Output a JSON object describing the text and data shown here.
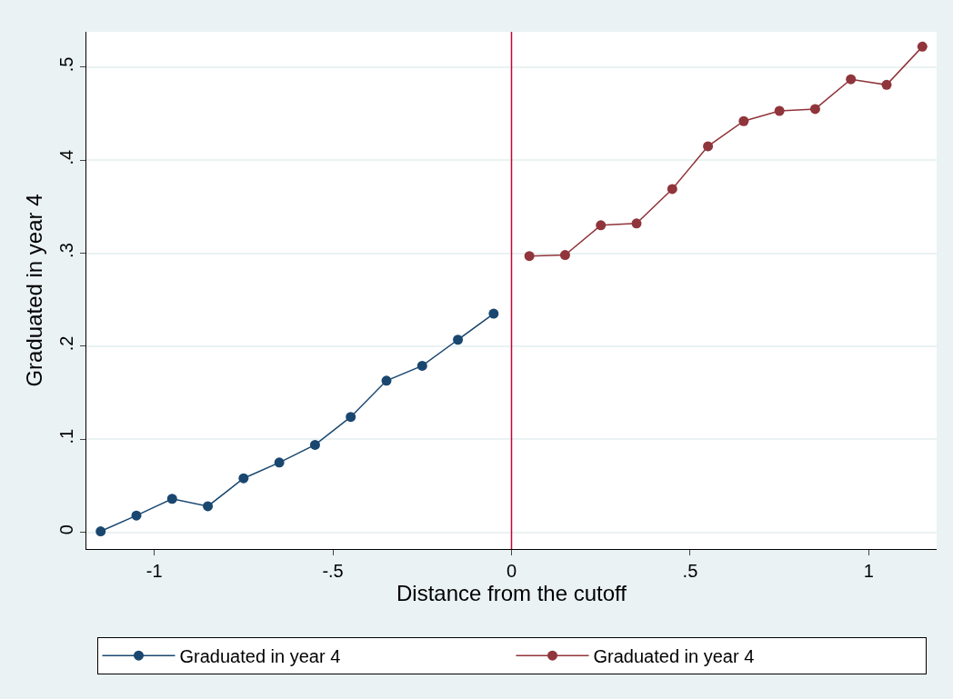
{
  "chart_data": {
    "type": "line",
    "xlabel": "Distance from the cutoff",
    "ylabel": "Graduated in year 4",
    "series": [
      {
        "name": "Graduated in year 4",
        "color": "#1a476f",
        "x": [
          -1.15,
          -1.05,
          -0.95,
          -0.85,
          -0.75,
          -0.65,
          -0.55,
          -0.45,
          -0.35,
          -0.25,
          -0.15,
          -0.05
        ],
        "values": [
          0.001,
          0.018,
          0.036,
          0.028,
          0.058,
          0.075,
          0.094,
          0.124,
          0.163,
          0.179,
          0.207,
          0.235
        ]
      },
      {
        "name": "Graduated in year 4",
        "color": "#90353b",
        "x": [
          0.05,
          0.15,
          0.25,
          0.35,
          0.45,
          0.55,
          0.65,
          0.75,
          0.85,
          0.95,
          1.05,
          1.15
        ],
        "values": [
          0.297,
          0.298,
          0.33,
          0.332,
          0.369,
          0.415,
          0.442,
          0.453,
          0.455,
          0.487,
          0.481,
          0.522
        ]
      }
    ],
    "xlim": [
      -1.19,
      1.19
    ],
    "xticks": [
      {
        "value": -1,
        "label": "-1"
      },
      {
        "value": -0.5,
        "label": "-.5"
      },
      0,
      {
        "value": 0.5,
        "label": ".5"
      },
      1
    ],
    "ylim": [
      -0.018,
      0.538
    ],
    "yticks": [
      0,
      {
        "value": 0.1,
        "label": ".1"
      },
      {
        "value": 0.2,
        "label": ".2"
      },
      {
        "value": 0.3,
        "label": ".3"
      },
      {
        "value": 0.4,
        "label": ".4"
      },
      {
        "value": 0.5,
        "label": ".5"
      }
    ],
    "ref_lines": [
      {
        "axis": "x",
        "value": 0,
        "color": "#c10534"
      }
    ],
    "grid": "y",
    "legend": "bottom",
    "marker": "circle",
    "line_style": "solid"
  }
}
